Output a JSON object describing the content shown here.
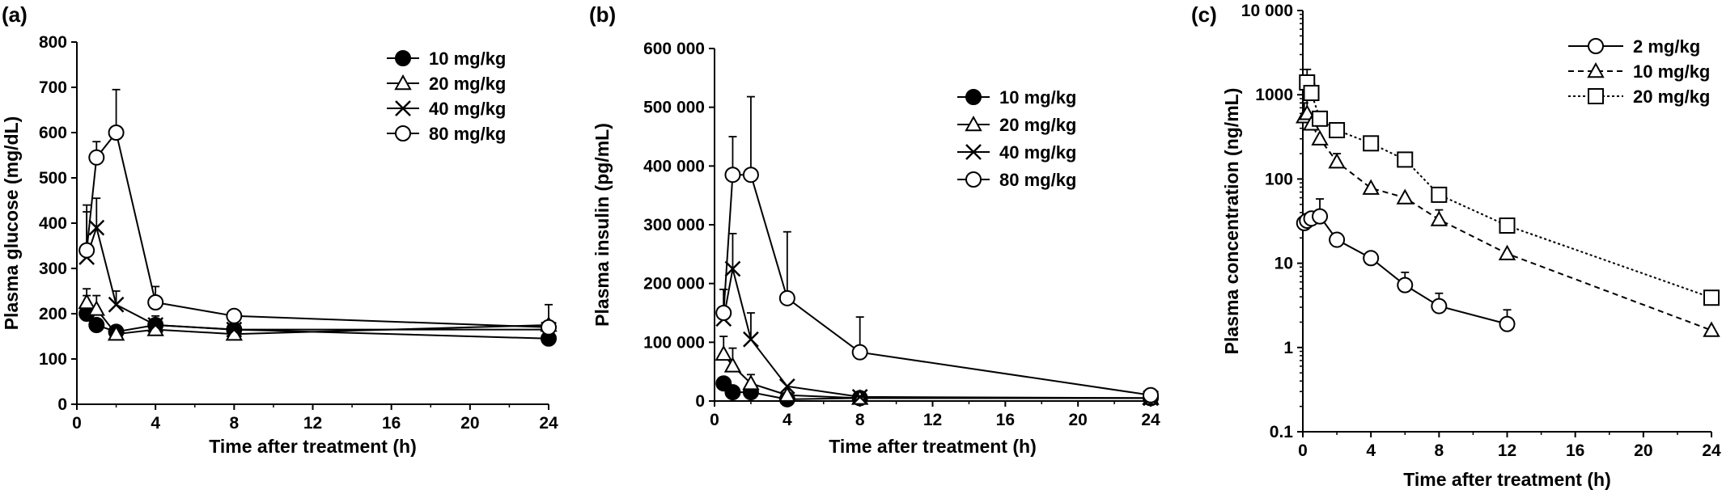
{
  "figure": {
    "colors": {
      "ink": "#000000",
      "background": "#ffffff",
      "open_marker": "#ffffff"
    }
  },
  "chart_data": [
    {
      "type": "line",
      "panel_label": "(a)",
      "xlabel": "Time after treatment (h)",
      "ylabel": "Plasma glucose (mg/dL)",
      "xlim": [
        0,
        24
      ],
      "ylim": [
        0,
        800
      ],
      "y_scale": "linear",
      "x_ticks": [
        0,
        4,
        8,
        12,
        16,
        20,
        24
      ],
      "x_tick_labels": [
        "0",
        "4",
        "8",
        "12",
        "16",
        "20",
        "24"
      ],
      "y_ticks": [
        0,
        100,
        200,
        300,
        400,
        500,
        600,
        700,
        800
      ],
      "y_tick_labels": [
        "0",
        "100",
        "200",
        "300",
        "400",
        "500",
        "600",
        "700",
        "800"
      ],
      "grid": false,
      "legend_position": "top-right",
      "series": [
        {
          "name": "10 mg/kg",
          "marker": "filled-circle",
          "dash": "solid",
          "x": [
            0.5,
            1,
            2,
            4,
            8,
            24
          ],
          "y": [
            200,
            175,
            160,
            175,
            165,
            145
          ],
          "err": [
            40,
            15,
            10,
            10,
            5,
            10
          ]
        },
        {
          "name": "20 mg/kg",
          "marker": "triangle",
          "dash": "solid",
          "x": [
            0.5,
            1,
            2,
            4,
            8,
            24
          ],
          "y": [
            225,
            210,
            155,
            165,
            155,
            175
          ],
          "err": [
            30,
            30,
            10,
            10,
            10,
            10
          ]
        },
        {
          "name": "40 mg/kg",
          "marker": "cross",
          "dash": "solid",
          "x": [
            0.5,
            1,
            2,
            4,
            8,
            24
          ],
          "y": [
            325,
            390,
            220,
            175,
            165,
            165
          ],
          "err": [
            100,
            65,
            30,
            20,
            10,
            10
          ]
        },
        {
          "name": "80 mg/kg",
          "marker": "open-circle",
          "dash": "solid",
          "x": [
            0.5,
            1,
            2,
            4,
            8,
            24
          ],
          "y": [
            340,
            545,
            600,
            225,
            195,
            170
          ],
          "err": [
            100,
            35,
            95,
            35,
            10,
            50
          ]
        }
      ]
    },
    {
      "type": "line",
      "panel_label": "(b)",
      "xlabel": "Time after treatment (h)",
      "ylabel": "Plasma insulin (pg/mL)",
      "xlim": [
        0,
        24
      ],
      "ylim": [
        0,
        600000
      ],
      "y_scale": "linear",
      "x_ticks": [
        0,
        4,
        8,
        12,
        16,
        20,
        24
      ],
      "x_tick_labels": [
        "0",
        "4",
        "8",
        "12",
        "16",
        "20",
        "24"
      ],
      "y_ticks": [
        0,
        100000,
        200000,
        300000,
        400000,
        500000,
        600000
      ],
      "y_tick_labels": [
        "0",
        "100 000",
        "200 000",
        "300 000",
        "400 000",
        "500 000",
        "600 000"
      ],
      "grid": false,
      "legend_position": "right",
      "series": [
        {
          "name": "10 mg/kg",
          "marker": "filled-circle",
          "dash": "solid",
          "x": [
            0.5,
            1,
            2,
            4,
            8,
            24
          ],
          "y": [
            30000,
            15000,
            15000,
            3000,
            5000,
            5000
          ],
          "err": [
            8000,
            5000,
            5000,
            1000,
            1000,
            1000
          ]
        },
        {
          "name": "20 mg/kg",
          "marker": "triangle",
          "dash": "solid",
          "x": [
            0.5,
            1,
            2,
            4,
            8,
            24
          ],
          "y": [
            80000,
            60000,
            30000,
            10000,
            5000,
            5000
          ],
          "err": [
            30000,
            30000,
            15000,
            5000,
            2000,
            2000
          ]
        },
        {
          "name": "40 mg/kg",
          "marker": "cross",
          "dash": "solid",
          "x": [
            0.5,
            1,
            2,
            4,
            8,
            24
          ],
          "y": [
            140000,
            225000,
            105000,
            25000,
            7000,
            5000
          ],
          "err": [
            50000,
            60000,
            45000,
            10000,
            3000,
            2000
          ]
        },
        {
          "name": "80 mg/kg",
          "marker": "open-circle",
          "dash": "solid",
          "x": [
            0.5,
            1,
            2,
            4,
            8,
            24
          ],
          "y": [
            150000,
            385000,
            385000,
            175000,
            83000,
            10000
          ],
          "err": [
            40000,
            65000,
            133000,
            113000,
            60000,
            3000
          ]
        }
      ]
    },
    {
      "type": "line",
      "panel_label": "(c)",
      "xlabel": "Time after treatment (h)",
      "ylabel": "Plasma concentration (ng/mL)",
      "xlim": [
        0,
        24
      ],
      "ylim": [
        0.1,
        10000
      ],
      "y_scale": "log",
      "x_ticks": [
        0,
        4,
        8,
        12,
        16,
        20,
        24
      ],
      "x_tick_labels": [
        "0",
        "4",
        "8",
        "12",
        "16",
        "20",
        "24"
      ],
      "y_ticks": [
        0.1,
        1,
        10,
        100,
        1000,
        10000
      ],
      "y_tick_labels": [
        "0.1",
        "1",
        "10",
        "100",
        "1000",
        "10 000"
      ],
      "grid": false,
      "legend_position": "top-right",
      "series": [
        {
          "name": "2 mg/kg",
          "marker": "open-circle",
          "dash": "solid",
          "x": [
            0.083,
            0.25,
            0.5,
            1,
            2,
            4,
            6,
            8,
            12
          ],
          "y": [
            30,
            32,
            34,
            36,
            19,
            11.5,
            5.5,
            3.1,
            1.9
          ],
          "err": [
            5,
            5,
            8,
            22,
            2,
            2,
            2.3,
            1.3,
            0.9
          ]
        },
        {
          "name": "10 mg/kg",
          "marker": "triangle",
          "dash": "dashed",
          "x": [
            0.083,
            0.25,
            0.5,
            1,
            2,
            4,
            6,
            8,
            12,
            24
          ],
          "y": [
            550,
            600,
            450,
            300,
            160,
            78,
            60,
            33,
            13,
            1.6
          ],
          "err": [
            250,
            300,
            100,
            50,
            40,
            10,
            10,
            10,
            2,
            0.2
          ]
        },
        {
          "name": "20 mg/kg",
          "marker": "open-square",
          "dash": "dotted",
          "x": [
            0.25,
            0.5,
            1,
            2,
            4,
            6,
            8,
            12,
            24
          ],
          "y": [
            1400,
            1050,
            520,
            380,
            265,
            170,
            65,
            28,
            3.9
          ],
          "err": [
            600,
            300,
            100,
            60,
            60,
            20,
            8,
            5,
            0.6
          ]
        }
      ]
    }
  ]
}
